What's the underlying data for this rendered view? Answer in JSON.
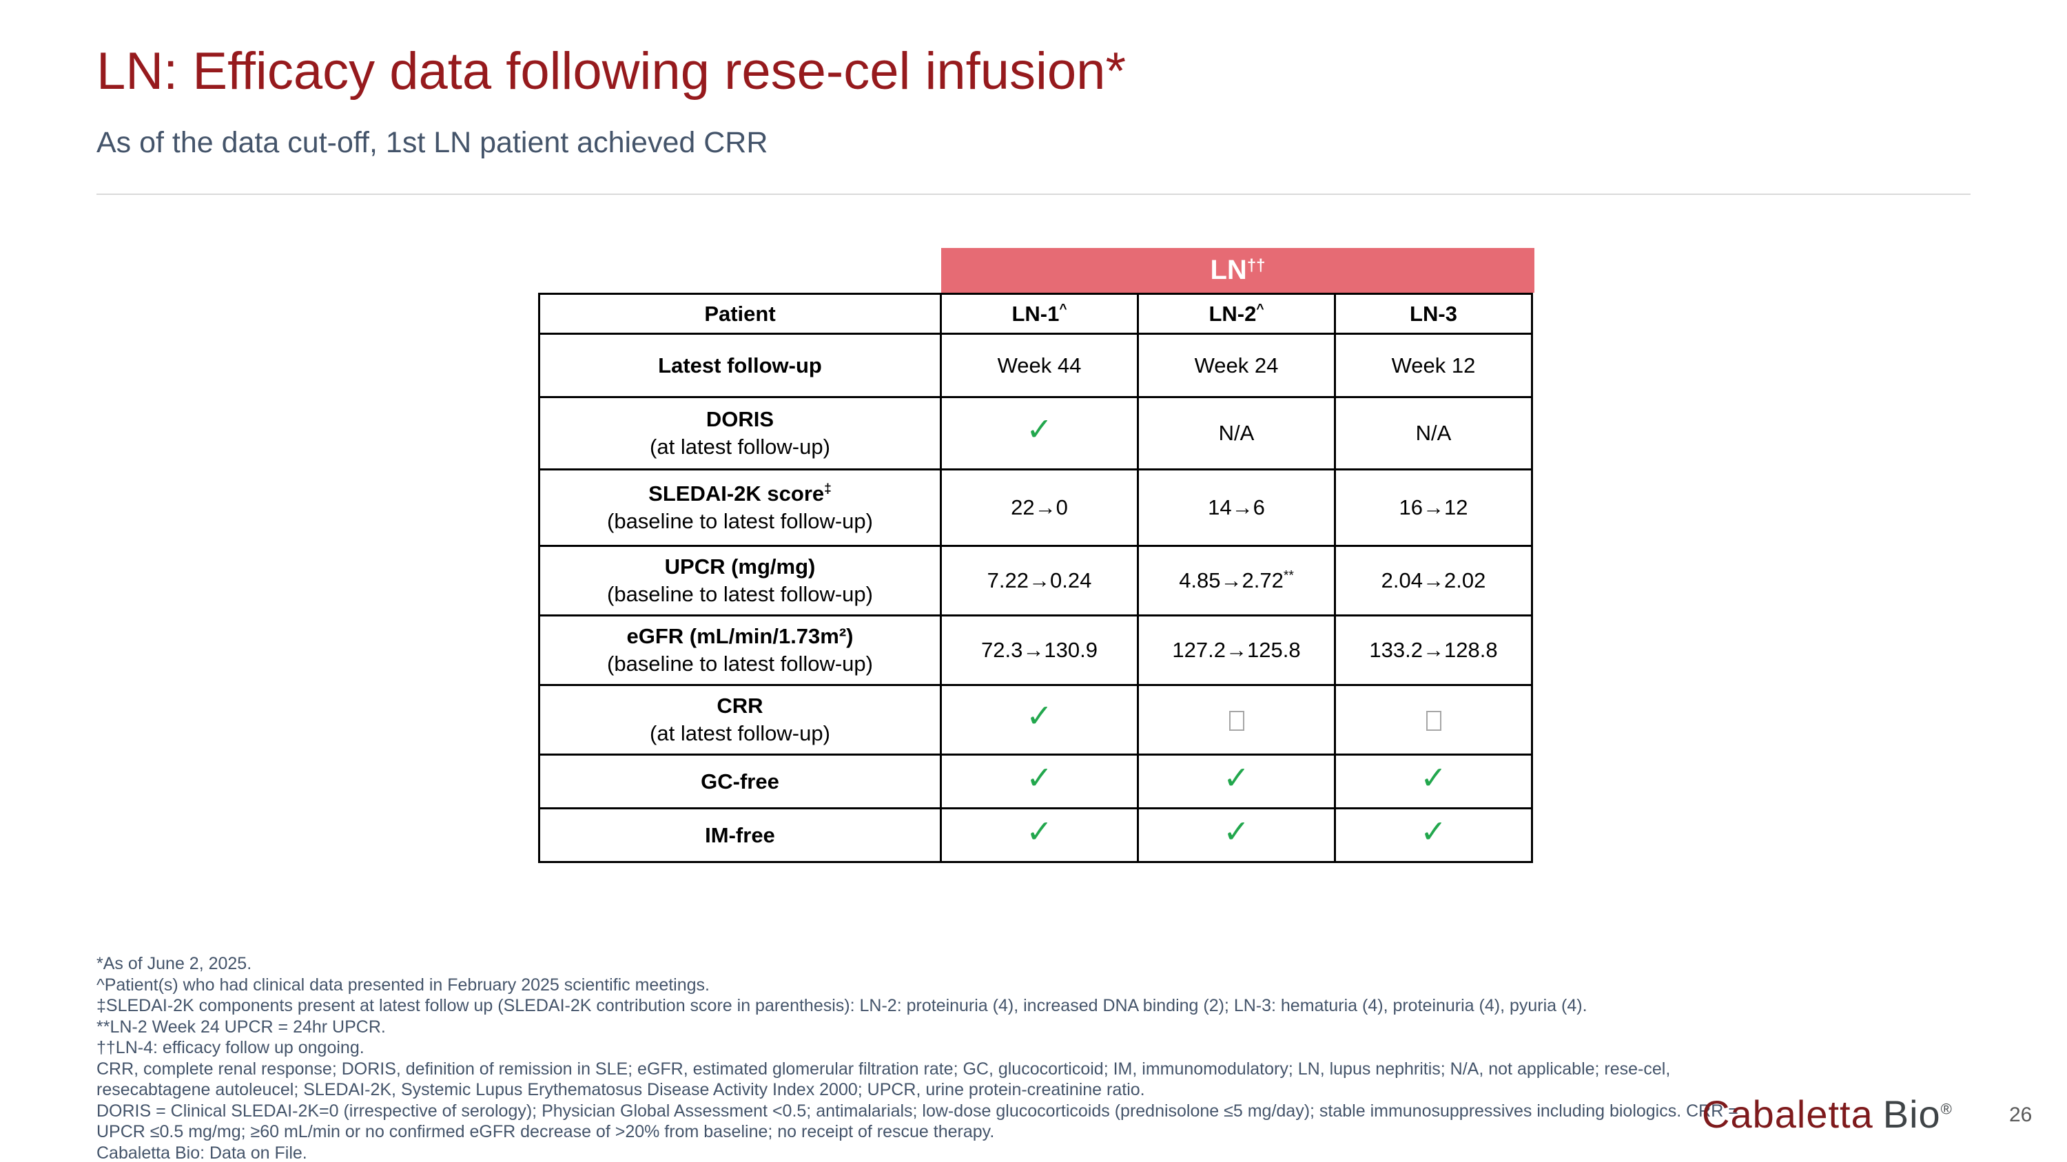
{
  "slide": {
    "title": "LN: Efficacy data following rese-cel infusion*",
    "subtitle": "As of the data cut-off, 1st LN patient achieved CRR",
    "page_number": "26"
  },
  "colors": {
    "title_red": "#961A1D",
    "subtitle_slate": "#44546A",
    "banner_pink": "#E66B74",
    "na_gray": "#CCCCCC",
    "check_green": "#22A74D",
    "logo_maroon": "#7E1A1C",
    "logo_gray": "#3F4447"
  },
  "icons": {
    "check_glyph": "✓"
  },
  "table": {
    "banner": {
      "text": "LN",
      "sup": "††"
    },
    "header": {
      "patient_label": "Patient",
      "columns": [
        {
          "text": "LN-1",
          "sup": "^"
        },
        {
          "text": "LN-2",
          "sup": "^"
        },
        {
          "text": "LN-3",
          "sup": ""
        }
      ]
    },
    "rows": [
      {
        "label": "Latest follow-up",
        "sublabel": "",
        "cells": [
          {
            "type": "text",
            "text": "Week 44",
            "sup": ""
          },
          {
            "type": "text",
            "text": "Week 24",
            "sup": ""
          },
          {
            "type": "text",
            "text": "Week 12",
            "sup": ""
          }
        ]
      },
      {
        "label": "DORIS",
        "sublabel": "(at latest follow-up)",
        "cells": [
          {
            "type": "check"
          },
          {
            "type": "na",
            "text": "N/A"
          },
          {
            "type": "na",
            "text": "N/A"
          }
        ]
      },
      {
        "label": "SLEDAI-2K score",
        "label_sup": "‡",
        "sublabel": "(baseline to latest follow-up)",
        "cells": [
          {
            "type": "text",
            "text": "22→0",
            "sup": ""
          },
          {
            "type": "text",
            "text": "14→6",
            "sup": ""
          },
          {
            "type": "text",
            "text": "16→12",
            "sup": ""
          }
        ]
      },
      {
        "label": "UPCR (mg/mg)",
        "sublabel": "(baseline to latest follow-up)",
        "cells": [
          {
            "type": "text",
            "text": "7.22→0.24",
            "sup": ""
          },
          {
            "type": "text",
            "text": "4.85→2.72",
            "sup": "**"
          },
          {
            "type": "text",
            "text": "2.04→2.02",
            "sup": ""
          }
        ]
      },
      {
        "label": "eGFR (mL/min/1.73m²)",
        "sublabel": "(baseline to latest follow-up)",
        "cells": [
          {
            "type": "text",
            "text": "72.3→130.9",
            "sup": ""
          },
          {
            "type": "text",
            "text": "127.2→125.8",
            "sup": ""
          },
          {
            "type": "text",
            "text": "133.2→128.8",
            "sup": ""
          }
        ]
      },
      {
        "label": "CRR",
        "sublabel": "(at latest follow-up)",
        "cells": [
          {
            "type": "check"
          },
          {
            "type": "box"
          },
          {
            "type": "box"
          }
        ]
      },
      {
        "label": "GC-free",
        "sublabel": "",
        "cells": [
          {
            "type": "check"
          },
          {
            "type": "check"
          },
          {
            "type": "check"
          }
        ]
      },
      {
        "label": "IM-free",
        "sublabel": "",
        "cells": [
          {
            "type": "check"
          },
          {
            "type": "check"
          },
          {
            "type": "check"
          }
        ]
      }
    ]
  },
  "footnotes": [
    "*As of June 2, 2025.",
    "^Patient(s) who had clinical data presented in February 2025 scientific meetings.",
    "‡SLEDAI-2K components present at latest follow up (SLEDAI-2K contribution score in parenthesis): LN-2: proteinuria (4), increased DNA binding (2); LN-3: hematuria (4), proteinuria (4), pyuria (4).",
    "**LN-2 Week 24 UPCR = 24hr UPCR.",
    "††LN-4: efficacy follow up ongoing.",
    "CRR, complete renal response; DORIS, definition of remission in SLE; eGFR, estimated glomerular filtration rate; GC, glucocorticoid; IM, immunomodulatory; LN, lupus nephritis; N/A, not applicable; rese-cel, resecabtagene autoleucel; SLEDAI-2K, Systemic Lupus Erythematosus Disease Activity Index 2000; UPCR, urine protein-creatinine ratio.",
    "DORIS = Clinical SLEDAI-2K=0 (irrespective of serology); Physician Global Assessment <0.5; antimalarials; low-dose glucocorticoids (prednisolone ≤5 mg/day); stable immunosuppressives including biologics. CRR = UPCR ≤0.5 mg/mg; ≥60 mL/min or no confirmed eGFR decrease of >20% from baseline; no receipt of rescue therapy.",
    "Cabaletta Bio: Data on File."
  ],
  "logo": {
    "part1": "Cabaletta",
    "part2": "Bio",
    "reg": "®"
  }
}
